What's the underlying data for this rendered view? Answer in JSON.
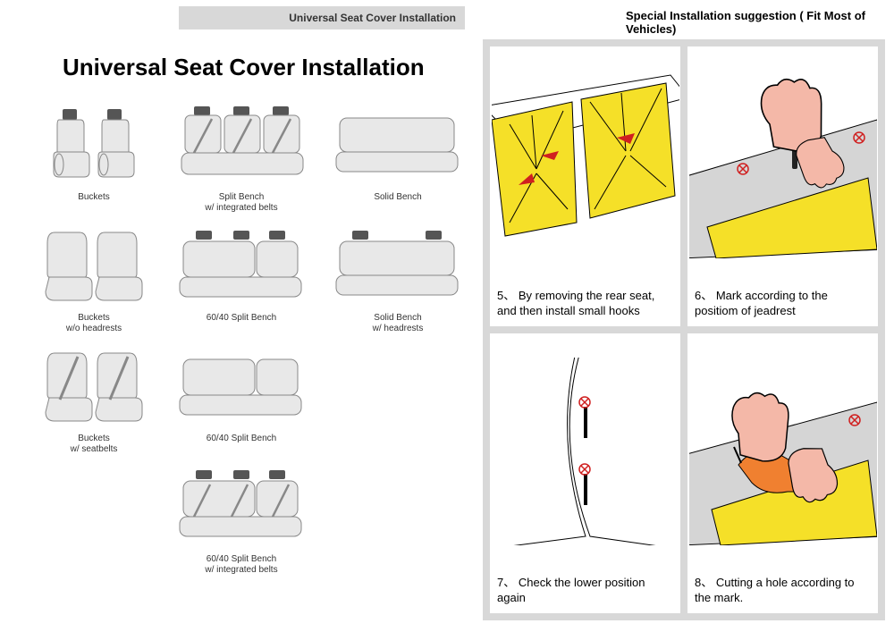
{
  "header": {
    "left_bar_text": "Universal Seat Cover Installation",
    "right_text": "Special Installation suggestion ( Fit Most of Vehicles)"
  },
  "main_title": "Universal Seat Cover Installation",
  "seat_types": [
    {
      "label": "Buckets",
      "icon": "buckets"
    },
    {
      "label": "Split Bench\nw/ integrated belts",
      "icon": "split-bench-belts"
    },
    {
      "label": "Solid Bench",
      "icon": "solid-bench"
    },
    {
      "label": "Buckets\nw/o headrests",
      "icon": "buckets-no-hr"
    },
    {
      "label": "60/40 Split Bench",
      "icon": "6040-hr"
    },
    {
      "label": "Solid Bench\nw/ headrests",
      "icon": "solid-bench-hr"
    },
    {
      "label": "Buckets\nw/ seatbelts",
      "icon": "buckets-belts"
    },
    {
      "label": "60/40 Split Bench",
      "icon": "6040"
    },
    {
      "label": "",
      "icon": ""
    },
    {
      "label": "",
      "icon": ""
    },
    {
      "label": "60/40 Split Bench\nw/ integrated belts",
      "icon": "6040-belts"
    },
    {
      "label": "",
      "icon": ""
    }
  ],
  "steps": [
    {
      "num": "5",
      "text": "By removing the rear seat, and then install small hooks"
    },
    {
      "num": "6",
      "text": "Mark according to the positiom of jeadrest"
    },
    {
      "num": "7",
      "text": "Check the lower position again"
    },
    {
      "num": "8",
      "text": "Cutting a hole according to the mark."
    }
  ],
  "colors": {
    "seat_stroke": "#888888",
    "seat_fill": "#e8e8e8",
    "seat_dark": "#555555",
    "diagram_stroke": "#000000",
    "diagram_yellow": "#f5e028",
    "diagram_skin": "#f4b8a8",
    "diagram_red": "#d02020",
    "diagram_orange": "#f08030",
    "diagram_gray": "#d5d5d5"
  }
}
